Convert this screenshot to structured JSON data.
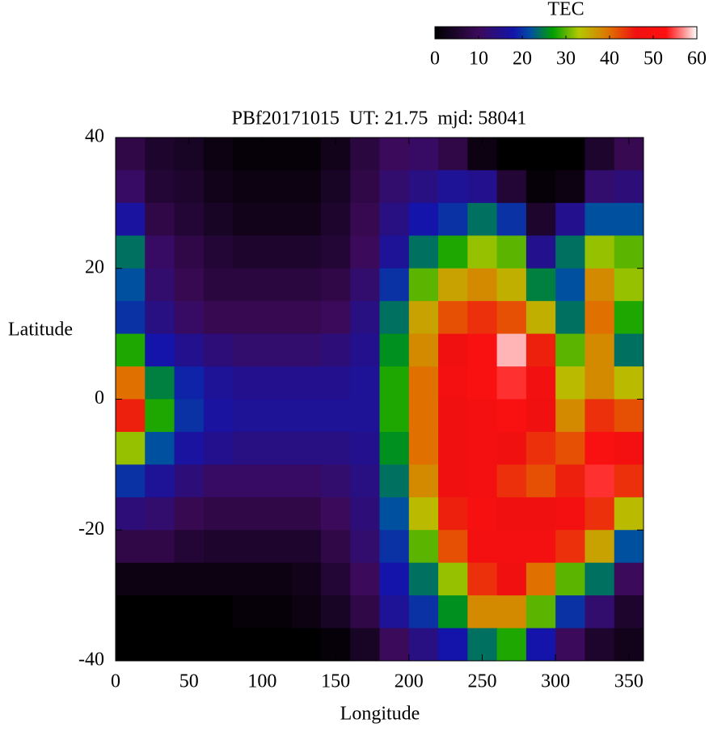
{
  "chart_data": {
    "type": "heatmap",
    "title": "PBf20171015  UT: 21.75  mjd: 58041",
    "x_label": "Longitude",
    "y_label": "Latitude",
    "x": [
      10,
      30,
      50,
      70,
      90,
      110,
      130,
      150,
      170,
      190,
      210,
      230,
      250,
      270,
      290,
      310,
      330,
      350
    ],
    "y": [
      37.5,
      32.5,
      27.5,
      22.5,
      17.5,
      12.5,
      7.5,
      2.5,
      -2.5,
      -7.5,
      -12.5,
      -17.5,
      -22.5,
      -27.5,
      -32.5,
      -37.5
    ],
    "z": [
      [
        8,
        5,
        4,
        2,
        1,
        1,
        1,
        3,
        7,
        10,
        11,
        8,
        2,
        0,
        0,
        0,
        5,
        9
      ],
      [
        11,
        6,
        5,
        3,
        2,
        2,
        2,
        4,
        8,
        12,
        14,
        16,
        15,
        6,
        1,
        2,
        12,
        13
      ],
      [
        17,
        8,
        6,
        4,
        3,
        3,
        3,
        5,
        9,
        14,
        18,
        20,
        24,
        20,
        5,
        15,
        22,
        22
      ],
      [
        24,
        11,
        8,
        6,
        5,
        5,
        5,
        6,
        10,
        16,
        24,
        28,
        32,
        30,
        15,
        24,
        32,
        30
      ],
      [
        22,
        12,
        9,
        7,
        7,
        7,
        7,
        8,
        12,
        20,
        30,
        36,
        38,
        35,
        25,
        22,
        38,
        32
      ],
      [
        20,
        14,
        11,
        9,
        9,
        9,
        9,
        10,
        14,
        24,
        36,
        42,
        44,
        42,
        35,
        24,
        40,
        28
      ],
      [
        28,
        18,
        15,
        13,
        12,
        12,
        12,
        13,
        15,
        26,
        38,
        46,
        50,
        58,
        45,
        30,
        38,
        24
      ],
      [
        40,
        25,
        19,
        16,
        15,
        15,
        15,
        15,
        16,
        28,
        40,
        48,
        50,
        54,
        47,
        34,
        38,
        34
      ],
      [
        45,
        28,
        20,
        17,
        16,
        16,
        16,
        16,
        16,
        28,
        40,
        46,
        48,
        50,
        46,
        38,
        44,
        42
      ],
      [
        32,
        22,
        17,
        15,
        14,
        14,
        14,
        14,
        15,
        26,
        40,
        46,
        48,
        46,
        44,
        42,
        50,
        48
      ],
      [
        20,
        16,
        13,
        11,
        11,
        11,
        11,
        12,
        14,
        24,
        38,
        46,
        48,
        44,
        42,
        45,
        54,
        44
      ],
      [
        13,
        12,
        9,
        8,
        8,
        8,
        8,
        10,
        13,
        22,
        34,
        45,
        49,
        46,
        46,
        48,
        44,
        34
      ],
      [
        8,
        8,
        6,
        5,
        5,
        5,
        5,
        8,
        12,
        20,
        30,
        42,
        48,
        48,
        48,
        44,
        36,
        22
      ],
      [
        2,
        2,
        2,
        2,
        2,
        2,
        3,
        6,
        10,
        18,
        24,
        32,
        44,
        46,
        40,
        30,
        24,
        10
      ],
      [
        0,
        0,
        0,
        0,
        1,
        1,
        2,
        4,
        8,
        16,
        20,
        26,
        38,
        38,
        30,
        20,
        12,
        5
      ],
      [
        0,
        0,
        0,
        0,
        0,
        0,
        0,
        1,
        4,
        10,
        14,
        18,
        24,
        28,
        18,
        10,
        5,
        3
      ]
    ],
    "xlim": [
      0,
      360
    ],
    "xticks": [
      0,
      50,
      100,
      150,
      200,
      250,
      300,
      350
    ],
    "ylim": [
      -40,
      40
    ],
    "yticks": [
      -40,
      -20,
      0,
      20,
      40
    ],
    "colorbar_label": "TEC",
    "zlim": [
      0,
      60
    ],
    "colorbar_ticks": [
      0,
      10,
      20,
      30,
      40,
      50,
      60
    ],
    "colorscale": [
      {
        "value": 0,
        "color": "#000000"
      },
      {
        "value": 10,
        "color": "#3c0a5a"
      },
      {
        "value": 18,
        "color": "#1414aa"
      },
      {
        "value": 22,
        "color": "#0050a0"
      },
      {
        "value": 27,
        "color": "#00a000"
      },
      {
        "value": 33,
        "color": "#b4c800"
      },
      {
        "value": 40,
        "color": "#e07000"
      },
      {
        "value": 46,
        "color": "#f01010"
      },
      {
        "value": 53,
        "color": "#ff1010"
      },
      {
        "value": 57,
        "color": "#ff9090"
      },
      {
        "value": 60,
        "color": "#ffffff"
      }
    ]
  }
}
